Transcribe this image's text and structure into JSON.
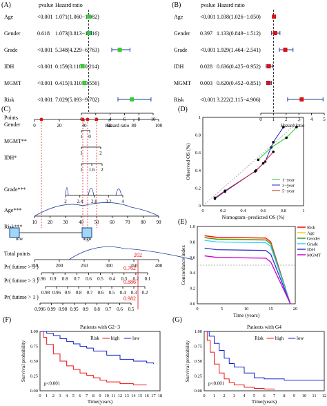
{
  "panels": {
    "A": {
      "label": "(A)",
      "col_pvalue": "pvalue",
      "col_hr": "Hazard ratio",
      "xlabel": "Hazard ratio",
      "xlim": [
        0,
        10
      ],
      "ticks": [
        0,
        2,
        4,
        6,
        8,
        10
      ],
      "rows": [
        {
          "name": "Age",
          "p": "<0.001",
          "text": "1.071(1.060−1.082)",
          "hr": 1.071,
          "lo": 1.06,
          "hi": 1.082
        },
        {
          "name": "Gender",
          "p": "0.618",
          "text": "1.073(0.813−1.416)",
          "hr": 1.073,
          "lo": 0.813,
          "hi": 1.416
        },
        {
          "name": "Grade",
          "p": "<0.001",
          "text": "5.348(4.229−6.763)",
          "hr": 5.348,
          "lo": 4.229,
          "hi": 6.763
        },
        {
          "name": "IDH",
          "p": "<0.001",
          "text": "0.159(0.118−0.214)",
          "hr": 0.159,
          "lo": 0.118,
          "hi": 0.214
        },
        {
          "name": "MGMT",
          "p": "<0.001",
          "text": "0.415(0.310−0.556)",
          "hr": 0.415,
          "lo": 0.31,
          "hi": 0.556
        },
        {
          "name": "Risk",
          "p": "<0.001",
          "text": "7.029(5.093−9.702)",
          "hr": 7.029,
          "lo": 5.093,
          "hi": 9.702
        }
      ]
    },
    "B": {
      "label": "(B)",
      "col_pvalue": "pvalue",
      "col_hr": "Hazard ratio",
      "xlabel": "Hazard ratio",
      "xlim": [
        0,
        5
      ],
      "ticks": [
        0,
        1,
        2,
        3,
        4,
        5
      ],
      "rows": [
        {
          "name": "Age",
          "p": "<0.001",
          "text": "1.038(1.026−1.050)",
          "hr": 1.038,
          "lo": 1.026,
          "hi": 1.05
        },
        {
          "name": "Gender",
          "p": "0.397",
          "text": "1.133(0.849−1.512)",
          "hr": 1.133,
          "lo": 0.849,
          "hi": 1.512
        },
        {
          "name": "Grade",
          "p": "<0.001",
          "text": "1.929(1.464−2.541)",
          "hr": 1.929,
          "lo": 1.464,
          "hi": 2.541
        },
        {
          "name": "IDH",
          "p": "0.028",
          "text": "0.636(0.425−0.952)",
          "hr": 0.636,
          "lo": 0.425,
          "hi": 0.952
        },
        {
          "name": "MGMT",
          "p": "0.003",
          "text": "0.620(0.452−0.851)",
          "hr": 0.62,
          "lo": 0.452,
          "hi": 0.851
        },
        {
          "name": "Risk",
          "p": "<0.001",
          "text": "3.222(2.115−4.906)",
          "hr": 3.222,
          "lo": 2.115,
          "hi": 4.906
        }
      ]
    },
    "C": {
      "label": "(C)",
      "rows": [
        {
          "name": "Points",
          "ticks": [
            "0",
            "20",
            "40",
            "60",
            "80",
            "100"
          ]
        },
        {
          "name": "Gender",
          "ticks": [
            "1",
            "0"
          ]
        },
        {
          "name": "MGMT**",
          "ticks": [
            "1",
            "2"
          ]
        },
        {
          "name": "IDH*",
          "ticks": [
            "1",
            "1.6",
            "2"
          ]
        },
        {
          "name": "Grade***",
          "ticks": [
            "2",
            "2.4",
            "2.8",
            "3.2",
            "4"
          ]
        },
        {
          "name": "Age***",
          "ticks": [
            "10",
            "20",
            "30",
            "40",
            "50",
            "60",
            "70",
            "80",
            "90"
          ]
        },
        {
          "name": "Risk***",
          "ticks": [
            "low",
            "high"
          ]
        },
        {
          "name": "Total points",
          "ticks": [
            "150",
            "200",
            "250",
            "300",
            "350",
            "400"
          ]
        },
        {
          "name": "Pr( futime > 5 )",
          "ticks": [
            "0.96",
            "0.9",
            "0.8",
            "0.7",
            "0.6",
            "0.5",
            "0.4",
            "0.3",
            "0.2",
            "0.1"
          ]
        },
        {
          "name": "Pr( futime > 3 )",
          "ticks": [
            "0.98",
            "0.96",
            "0.9",
            "0.8",
            "0.7",
            "0.6",
            "0.5",
            "0.4",
            "0.3",
            "0.2"
          ]
        },
        {
          "name": "Pr( futime > 1 )",
          "ticks": [
            "0.996",
            "0.99",
            "0.98",
            "0.95",
            "0.9",
            "0.8",
            "0.7",
            "0.6",
            "0.5"
          ]
        }
      ],
      "total_value": "202",
      "prob_values": [
        "0.762",
        "0.886",
        "0.982"
      ]
    },
    "D": {
      "label": "(D)",
      "xlabel": "Nomogram−predicted OS (%)",
      "ylabel": "Observed OS (%)",
      "xlim": [
        0,
        1
      ],
      "ylim": [
        0,
        1
      ],
      "ticks": [
        "0",
        "0.2",
        "0.4",
        "0.6",
        "0.8",
        "1"
      ],
      "legend": [
        "1−year",
        "3−year",
        "5−year"
      ],
      "colors": [
        "#22cc22",
        "#2222cc",
        "#cc2222"
      ],
      "series": [
        {
          "name": "1−year",
          "x": [
            0.55,
            0.68,
            0.83,
            0.93
          ],
          "y": [
            0.52,
            0.66,
            0.77,
            0.89
          ]
        },
        {
          "name": "3−year",
          "x": [
            0.12,
            0.22,
            0.53,
            0.62,
            0.7,
            0.8
          ],
          "y": [
            0.08,
            0.16,
            0.4,
            0.5,
            0.72,
            0.89
          ]
        },
        {
          "name": "5−year",
          "x": [
            0.12,
            0.22,
            0.52,
            0.6,
            0.7
          ],
          "y": [
            0.09,
            0.17,
            0.39,
            0.48,
            0.61
          ]
        }
      ]
    },
    "E": {
      "label": "(E)",
      "xlabel": "Time (years)",
      "ylabel": "Concordance index",
      "xlim": [
        0,
        20
      ],
      "ylim": [
        0,
        1
      ],
      "xticks": [
        "0",
        "5",
        "10",
        "15",
        "20"
      ],
      "yticks": [
        "0.0",
        "0.2",
        "0.4",
        "0.6",
        "0.8",
        "1.0"
      ],
      "legend": [
        "Risk",
        "Age",
        "Gender",
        "Grade",
        "IDH",
        "MGMT"
      ],
      "colors": [
        "#ff0000",
        "#ffcc00",
        "#339933",
        "#33ccff",
        "#3333cc",
        "#cc00cc"
      ],
      "levels": [
        0.88,
        0.86,
        0.855,
        0.82,
        0.72,
        0.62
      ]
    },
    "F": {
      "label": "(F)",
      "title": "Patients with G2−3",
      "xlabel": "Time(years)",
      "ylabel": "Survival probability",
      "xticks": [
        "0",
        "1",
        "2",
        "3",
        "4",
        "5",
        "6",
        "7",
        "8",
        "9",
        "10",
        "11",
        "12",
        "13",
        "14",
        "15",
        "16",
        "17",
        "18"
      ],
      "yticks": [
        "0.00",
        "0.25",
        "0.50",
        "0.75",
        "1.00"
      ],
      "legend_title": "Risk",
      "legend": [
        "high",
        "low"
      ],
      "pvalue": "p<0.001"
    },
    "G": {
      "label": "(G)",
      "title": "Patients with G4",
      "xlabel": "Time(years)",
      "ylabel": "Survival probability",
      "xticks": [
        "0",
        "1",
        "2",
        "3",
        "4",
        "5",
        "6",
        "7",
        "8",
        "9",
        "10",
        "11",
        "12"
      ],
      "yticks": [
        "0.00",
        "0.25",
        "0.50",
        "0.75",
        "1.00"
      ],
      "legend_title": "Risk",
      "legend": [
        "high",
        "low"
      ],
      "pvalue": "p<0.001"
    }
  },
  "chart_data": [
    {
      "type": "scatter",
      "title": "",
      "xlabel": "Hazard ratio",
      "categories": [
        "Age",
        "Gender",
        "Grade",
        "IDH",
        "MGMT",
        "Risk"
      ],
      "values": [
        1.071,
        1.073,
        5.348,
        0.159,
        0.415,
        7.029
      ]
    },
    {
      "type": "scatter",
      "title": "",
      "xlabel": "Hazard ratio",
      "categories": [
        "Age",
        "Gender",
        "Grade",
        "IDH",
        "MGMT",
        "Risk"
      ],
      "values": [
        1.038,
        1.133,
        1.929,
        0.636,
        0.62,
        3.222
      ]
    },
    {
      "type": "line",
      "xlabel": "Nomogram−predicted OS (%)",
      "ylabel": "Observed OS (%)",
      "legend": [
        "1−year",
        "3−year",
        "5−year"
      ]
    },
    {
      "type": "line",
      "xlabel": "Time (years)",
      "ylabel": "Concordance index",
      "legend": [
        "Risk",
        "Age",
        "Gender",
        "Grade",
        "IDH",
        "MGMT"
      ]
    },
    {
      "type": "line",
      "title": "Patients with G2−3",
      "xlabel": "Time(years)",
      "ylabel": "Survival probability",
      "legend": [
        "high",
        "low"
      ]
    },
    {
      "type": "line",
      "title": "Patients with G4",
      "xlabel": "Time(years)",
      "ylabel": "Survival probability",
      "legend": [
        "high",
        "low"
      ]
    }
  ]
}
